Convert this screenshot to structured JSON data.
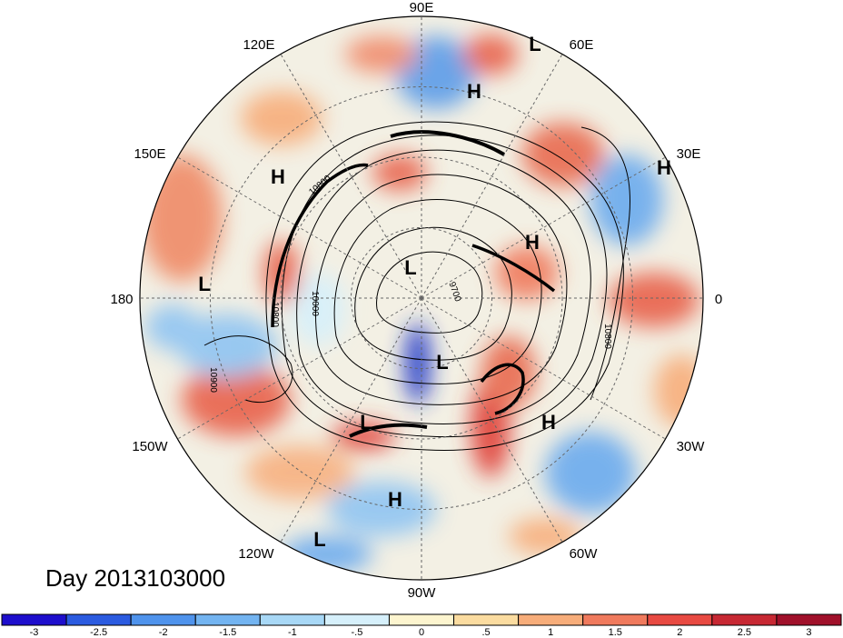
{
  "map": {
    "longitude_labels": [
      "90E",
      "60E",
      "30E",
      "0",
      "30W",
      "60W",
      "90W",
      "120W",
      "150W",
      "180",
      "150E",
      "120E"
    ],
    "pressure_centers": [
      "L",
      "H",
      "H",
      "H",
      "H",
      "L",
      "L",
      "L",
      "H",
      "L",
      "H",
      "L"
    ],
    "contour_labels": [
      "10800",
      "10000",
      "9700",
      "10800",
      "10800",
      "10900"
    ],
    "day_label": "Day 2013103000"
  },
  "colorbar": {
    "tick_labels": [
      "-3",
      "-2.5",
      "-2",
      "-1.5",
      "-1",
      "-.5",
      "0",
      ".5",
      "1",
      "1.5",
      "2",
      "2.5",
      "3"
    ],
    "colors": [
      "#1e0ecc",
      "#2b5be0",
      "#4f93ec",
      "#73b4f1",
      "#a8d8f6",
      "#d6f0fb",
      "#fdf5cf",
      "#fbdca0",
      "#f7ad7a",
      "#f07a5d",
      "#e84a42",
      "#c72833",
      "#a0102a"
    ]
  }
}
